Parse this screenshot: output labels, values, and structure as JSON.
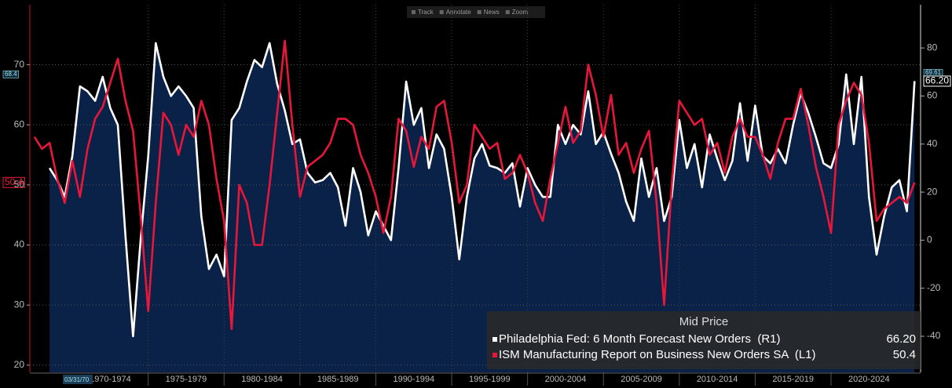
{
  "chart_data": {
    "type": "line",
    "toolbar": [
      "Track",
      "Annotate",
      "News",
      "Zoom"
    ],
    "cursor_date": "03/31/70",
    "x": [
      1967.5,
      1968,
      1968.5,
      1969,
      1969.5,
      1970,
      1970.5,
      1971,
      1971.5,
      1972,
      1972.5,
      1973,
      1973.5,
      1974,
      1974.5,
      1975,
      1975.5,
      1976,
      1976.5,
      1977,
      1977.5,
      1978,
      1978.5,
      1979,
      1979.5,
      1980,
      1980.5,
      1981,
      1981.5,
      1982,
      1982.5,
      1983,
      1983.5,
      1984,
      1984.5,
      1985,
      1985.5,
      1986,
      1986.5,
      1987,
      1987.5,
      1988,
      1988.5,
      1989,
      1989.5,
      1990,
      1990.5,
      1991,
      1991.5,
      1992,
      1992.5,
      1993,
      1993.5,
      1994,
      1994.5,
      1995,
      1995.5,
      1996,
      1996.5,
      1997,
      1997.5,
      1998,
      1998.5,
      1999,
      1999.5,
      2000,
      2000.5,
      2001,
      2001.5,
      2002,
      2002.5,
      2003,
      2003.5,
      2004,
      2004.5,
      2005,
      2005.5,
      2006,
      2006.5,
      2007,
      2007.5,
      2008,
      2008.5,
      2009,
      2009.5,
      2010,
      2010.5,
      2011,
      2011.5,
      2012,
      2012.5,
      2013,
      2013.5,
      2014,
      2014.5,
      2015,
      2015.5,
      2016,
      2016.5,
      2017,
      2017.5,
      2018,
      2018.5,
      2019,
      2019.5,
      2020,
      2020.5,
      2021,
      2021.5,
      2022,
      2022.5,
      2023,
      2023.5,
      2024,
      2024.5,
      2025,
      2025.5
    ],
    "xlim": [
      1967.2,
      2025.9
    ],
    "xticks": [
      {
        "value": 1972.5,
        "label": "1970-1974"
      },
      {
        "value": 1977.5,
        "label": "1975-1979"
      },
      {
        "value": 1982.5,
        "label": "1980-1984"
      },
      {
        "value": 1987.5,
        "label": "1985-1989"
      },
      {
        "value": 1992.5,
        "label": "1990-1994"
      },
      {
        "value": 1997.5,
        "label": "1995-1999"
      },
      {
        "value": 2002.5,
        "label": "2000-2004"
      },
      {
        "value": 2007.5,
        "label": "2005-2009"
      },
      {
        "value": 2012.5,
        "label": "2010-2014"
      },
      {
        "value": 2017.5,
        "label": "2015-2019"
      },
      {
        "value": 2022.5,
        "label": "2020-2024"
      }
    ],
    "ylim": [
      18.8,
      80
    ],
    "yticks": [
      20,
      30,
      40,
      50,
      60,
      70
    ],
    "y2lim": [
      -55,
      98
    ],
    "y2ticks": [
      -40,
      -20,
      0,
      20,
      40,
      60,
      80
    ],
    "grid": true,
    "legend": {
      "title": "Mid Price",
      "corner": "bottom-right"
    },
    "axis_tags": [
      {
        "axis": "y",
        "value": 68.4,
        "label": "68.4",
        "color": "#9fe3ef"
      },
      {
        "axis": "y",
        "value": 50.4,
        "label": "50.4",
        "color": "#e8173a"
      },
      {
        "axis": "y2",
        "value": 69.61,
        "label": "69.61",
        "color": "#9fe3ef"
      },
      {
        "axis": "y2",
        "value": 66.2,
        "label": "66.20",
        "color": "#ffffff"
      }
    ],
    "series": [
      {
        "name": "Philadelphia Fed: 6 Month Forecast New Orders  (R1)",
        "legend_value": "66.20",
        "color": "#ffffff",
        "fill": "#0b2248",
        "axis": "y2",
        "values": [
          null,
          null,
          30,
          25,
          18,
          35,
          64,
          62,
          58,
          68,
          55,
          48,
          2,
          -40,
          0,
          35,
          82,
          68,
          60,
          64,
          60,
          55,
          10,
          -12,
          -6,
          -15,
          50,
          55,
          66,
          75,
          72,
          82,
          65,
          54,
          40,
          42,
          28,
          24,
          25,
          28,
          22,
          6,
          30,
          20,
          2,
          12,
          6,
          0,
          30,
          66,
          48,
          55,
          30,
          44,
          38,
          18,
          -8,
          18,
          34,
          40,
          31,
          30,
          28,
          32,
          14,
          30,
          23,
          18,
          18,
          48,
          40,
          48,
          44,
          62,
          40,
          45,
          36,
          28,
          16,
          8,
          34,
          18,
          30,
          8,
          18,
          50,
          30,
          40,
          22,
          44,
          34,
          25,
          33,
          57,
          33,
          56,
          35,
          32,
          38,
          32,
          48,
          61,
          53,
          43,
          32,
          30,
          40,
          69,
          40,
          68,
          18,
          -6,
          10,
          22,
          25,
          12,
          66.2
        ]
      },
      {
        "name": "ISM Manufacturing Report on Business New Orders SA  (L1)",
        "legend_value": "50.4",
        "color": "#e8173a",
        "axis": "y",
        "values": [
          58,
          56,
          57,
          51,
          47,
          54,
          48,
          56,
          61,
          63,
          67,
          71,
          64,
          59,
          45,
          29,
          47,
          62,
          60,
          55,
          60,
          58,
          64,
          60,
          51,
          44,
          26,
          50,
          47,
          40,
          40,
          50,
          62,
          74,
          60,
          48,
          53,
          54,
          55,
          57,
          61,
          61,
          60,
          55,
          52,
          48,
          42,
          48,
          61,
          59,
          53,
          58,
          56,
          63,
          64,
          57,
          47,
          50,
          60,
          58,
          56,
          57,
          51,
          52,
          55,
          52,
          47,
          44,
          51,
          57,
          63,
          57,
          59,
          70,
          65,
          58,
          65,
          55,
          57,
          52,
          56,
          59,
          47,
          30,
          50,
          64,
          62,
          60,
          61,
          55,
          57,
          52,
          58,
          61,
          58,
          58,
          55,
          51,
          57,
          61,
          61,
          66,
          60,
          53,
          48,
          42,
          60,
          64,
          67,
          65,
          57,
          44,
          46,
          47,
          48,
          47,
          50.4
        ]
      }
    ]
  }
}
